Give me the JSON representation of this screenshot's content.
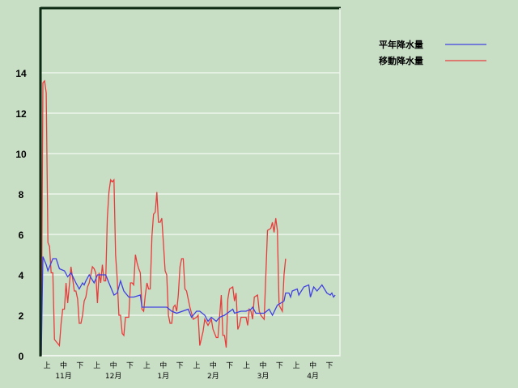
{
  "chart_data": {
    "type": "line",
    "title": "",
    "xlabel": "",
    "ylabel": "",
    "ylim": [
      0,
      14
    ],
    "yticks": [
      "0",
      "2",
      "4",
      "6",
      "8",
      "10",
      "12",
      "14"
    ],
    "grid": true,
    "legend_position": "top-right",
    "x_tick_labels": [
      "上",
      "中",
      "下"
    ],
    "months": [
      "11月",
      "12月",
      "1月",
      "2月",
      "3月",
      "4月"
    ],
    "series": [
      {
        "name": "平年降水量",
        "color": "#4040e0",
        "points": [
          [
            "11/01",
            0
          ],
          [
            "11/02",
            4.9
          ],
          [
            "11/04",
            4.5
          ],
          [
            "11/05",
            4.2
          ],
          [
            "11/08",
            4.8
          ],
          [
            "11/10",
            4.8
          ],
          [
            "11/12",
            4.3
          ],
          [
            "11/15",
            4.2
          ],
          [
            "11/17",
            3.9
          ],
          [
            "11/19",
            4.1
          ],
          [
            "11/22",
            3.6
          ],
          [
            "11/24",
            3.3
          ],
          [
            "11/26",
            3.6
          ],
          [
            "11/27",
            3.5
          ],
          [
            "11/28",
            3.7
          ],
          [
            "11/30",
            4.0
          ],
          [
            "12/03",
            3.6
          ],
          [
            "12/05",
            4.0
          ],
          [
            "12/10",
            4.0
          ],
          [
            "12/12",
            3.6
          ],
          [
            "12/15",
            3.0
          ],
          [
            "12/17",
            3.1
          ],
          [
            "12/19",
            3.7
          ],
          [
            "12/21",
            3.2
          ],
          [
            "12/24",
            2.9
          ],
          [
            "12/27",
            2.9
          ],
          [
            "12/31",
            3.0
          ],
          [
            "01/01",
            2.4
          ],
          [
            "01/08",
            2.4
          ],
          [
            "01/16",
            2.4
          ],
          [
            "01/19",
            2.2
          ],
          [
            "01/22",
            2.1
          ],
          [
            "01/29",
            2.3
          ],
          [
            "01/31",
            1.9
          ],
          [
            "02/03",
            2.2
          ],
          [
            "02/05",
            2.2
          ],
          [
            "02/08",
            2.0
          ],
          [
            "02/10",
            1.7
          ],
          [
            "02/12",
            1.9
          ],
          [
            "02/15",
            1.7
          ],
          [
            "02/17",
            1.9
          ],
          [
            "02/20",
            2.0
          ],
          [
            "02/25",
            2.3
          ],
          [
            "02/26",
            2.1
          ],
          [
            "03/02",
            2.2
          ],
          [
            "03/05",
            2.2
          ],
          [
            "03/08",
            2.3
          ],
          [
            "03/09",
            2.4
          ],
          [
            "03/11",
            2.1
          ],
          [
            "03/16",
            2.1
          ],
          [
            "03/19",
            2.3
          ],
          [
            "03/21",
            2.0
          ],
          [
            "03/24",
            2.5
          ],
          [
            "03/26",
            2.6
          ],
          [
            "03/28",
            2.7
          ],
          [
            "03/29",
            3.1
          ],
          [
            "03/31",
            3.1
          ],
          [
            "04/01",
            2.9
          ],
          [
            "04/02",
            3.2
          ],
          [
            "04/05",
            3.3
          ],
          [
            "04/06",
            3.0
          ],
          [
            "04/09",
            3.4
          ],
          [
            "04/12",
            3.5
          ],
          [
            "04/13",
            2.9
          ],
          [
            "04/15",
            3.4
          ],
          [
            "04/17",
            3.2
          ],
          [
            "04/20",
            3.5
          ],
          [
            "04/23",
            3.1
          ],
          [
            "04/25",
            3.0
          ],
          [
            "04/26",
            3.1
          ],
          [
            "04/27",
            2.9
          ],
          [
            "04/28",
            3.0
          ]
        ]
      },
      {
        "name": "移動降水量",
        "color": "#e83c3c",
        "points": [
          [
            "11/01",
            0
          ],
          [
            "11/02",
            13.5
          ],
          [
            "11/03",
            13.6
          ],
          [
            "11/04",
            13.0
          ],
          [
            "11/05",
            5.6
          ],
          [
            "11/06",
            5.4
          ],
          [
            "11/07",
            4.1
          ],
          [
            "11/08",
            4.1
          ],
          [
            "11/09",
            0.8
          ],
          [
            "11/11",
            0.6
          ],
          [
            "11/12",
            0.5
          ],
          [
            "11/13",
            1.6
          ],
          [
            "11/14",
            2.3
          ],
          [
            "11/15",
            2.3
          ],
          [
            "11/16",
            3.6
          ],
          [
            "11/17",
            2.6
          ],
          [
            "11/18",
            3.5
          ],
          [
            "11/19",
            4.4
          ],
          [
            "11/20",
            3.8
          ],
          [
            "11/21",
            3.2
          ],
          [
            "11/22",
            3.2
          ],
          [
            "11/23",
            2.8
          ],
          [
            "11/24",
            1.6
          ],
          [
            "11/25",
            1.6
          ],
          [
            "11/26",
            2.0
          ],
          [
            "11/27",
            2.7
          ],
          [
            "11/28",
            2.9
          ],
          [
            "11/29",
            3.4
          ],
          [
            "11/30",
            3.6
          ],
          [
            "12/01",
            4.0
          ],
          [
            "12/02",
            4.4
          ],
          [
            "12/03",
            4.3
          ],
          [
            "12/04",
            4.1
          ],
          [
            "12/05",
            2.6
          ],
          [
            "12/06",
            4.1
          ],
          [
            "12/07",
            3.6
          ],
          [
            "12/08",
            4.5
          ],
          [
            "12/09",
            3.7
          ],
          [
            "12/10",
            3.7
          ],
          [
            "12/11",
            6.8
          ],
          [
            "12/12",
            8.1
          ],
          [
            "12/13",
            8.7
          ],
          [
            "12/14",
            8.6
          ],
          [
            "12/15",
            8.7
          ],
          [
            "12/16",
            5.0
          ],
          [
            "12/17",
            3.8
          ],
          [
            "12/18",
            2.0
          ],
          [
            "12/19",
            2.0
          ],
          [
            "12/20",
            1.1
          ],
          [
            "12/21",
            1.0
          ],
          [
            "12/22",
            1.9
          ],
          [
            "12/23",
            1.9
          ],
          [
            "12/24",
            1.9
          ],
          [
            "12/25",
            3.6
          ],
          [
            "12/26",
            3.6
          ],
          [
            "12/27",
            3.5
          ],
          [
            "12/28",
            5.0
          ],
          [
            "12/29",
            4.6
          ],
          [
            "12/30",
            4.3
          ],
          [
            "12/31",
            4.1
          ],
          [
            "01/01",
            2.3
          ],
          [
            "01/02",
            2.2
          ],
          [
            "01/03",
            3.0
          ],
          [
            "01/04",
            3.6
          ],
          [
            "01/05",
            3.3
          ],
          [
            "01/06",
            3.3
          ],
          [
            "01/07",
            5.9
          ],
          [
            "01/08",
            7.0
          ],
          [
            "01/09",
            7.1
          ],
          [
            "01/10",
            8.1
          ],
          [
            "01/11",
            6.6
          ],
          [
            "01/12",
            6.6
          ],
          [
            "01/13",
            6.8
          ],
          [
            "01/14",
            5.5
          ],
          [
            "01/15",
            4.2
          ],
          [
            "01/16",
            4.0
          ],
          [
            "01/17",
            2.0
          ],
          [
            "01/18",
            1.6
          ],
          [
            "01/19",
            1.6
          ],
          [
            "01/20",
            2.4
          ],
          [
            "01/21",
            2.5
          ],
          [
            "01/22",
            2.2
          ],
          [
            "01/23",
            3.0
          ],
          [
            "01/24",
            4.4
          ],
          [
            "01/25",
            4.8
          ],
          [
            "01/26",
            4.8
          ],
          [
            "01/27",
            3.3
          ],
          [
            "01/28",
            3.2
          ],
          [
            "01/30",
            2.4
          ],
          [
            "02/01",
            1.8
          ],
          [
            "02/03",
            1.9
          ],
          [
            "02/04",
            2.0
          ],
          [
            "02/05",
            0.5
          ],
          [
            "02/07",
            1.2
          ],
          [
            "02/08",
            1.8
          ],
          [
            "02/10",
            1.5
          ],
          [
            "02/12",
            1.8
          ],
          [
            "02/13",
            1.3
          ],
          [
            "02/15",
            0.9
          ],
          [
            "02/16",
            0.9
          ],
          [
            "02/18",
            3.0
          ],
          [
            "02/19",
            1.0
          ],
          [
            "02/20",
            1.0
          ],
          [
            "02/21",
            0.4
          ],
          [
            "02/22",
            2.8
          ],
          [
            "02/23",
            3.3
          ],
          [
            "02/25",
            3.4
          ],
          [
            "02/26",
            2.7
          ],
          [
            "02/27",
            3.1
          ],
          [
            "02/28",
            1.3
          ],
          [
            "03/01",
            1.5
          ],
          [
            "03/02",
            1.9
          ],
          [
            "03/03",
            1.9
          ],
          [
            "03/05",
            1.9
          ],
          [
            "03/06",
            1.5
          ],
          [
            "03/07",
            2.3
          ],
          [
            "03/08",
            2.2
          ],
          [
            "03/09",
            1.8
          ],
          [
            "03/10",
            2.9
          ],
          [
            "03/12",
            3.0
          ],
          [
            "03/13",
            2.2
          ],
          [
            "03/14",
            2.0
          ],
          [
            "03/16",
            1.8
          ],
          [
            "03/18",
            6.2
          ],
          [
            "03/20",
            6.3
          ],
          [
            "03/21",
            6.6
          ],
          [
            "03/22",
            6.1
          ],
          [
            "03/23",
            6.8
          ],
          [
            "03/24",
            6.2
          ],
          [
            "03/25",
            2.5
          ],
          [
            "03/27",
            2.2
          ],
          [
            "03/28",
            4.0
          ],
          [
            "03/29",
            4.8
          ]
        ]
      }
    ]
  }
}
